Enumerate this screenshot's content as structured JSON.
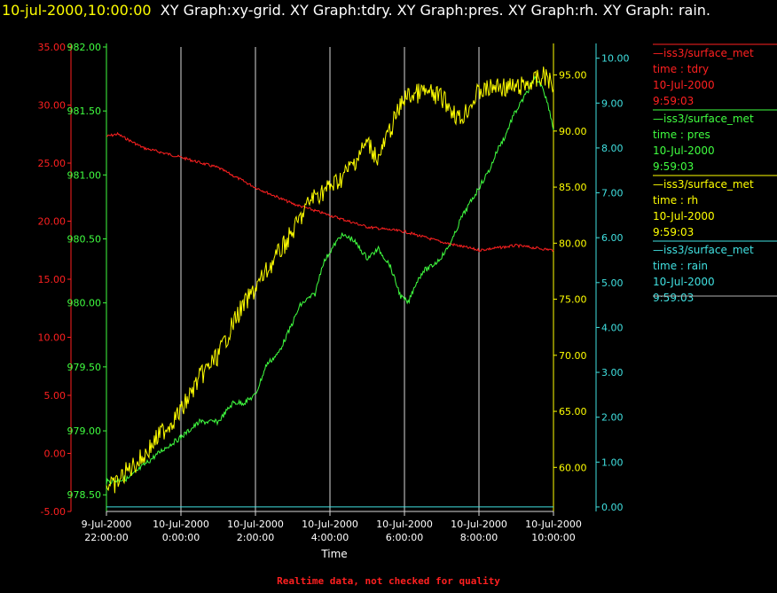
{
  "title": {
    "timestamp": "10-jul-2000,10:00:00",
    "text": "XY Graph:xy-grid.  XY Graph:tdry.  XY Graph:pres.  XY Graph:rh.  XY Graph: rain."
  },
  "footer": "Realtime data, not checked for quality",
  "chart_data": {
    "type": "line",
    "xlabel": "Time",
    "x_ticks": [
      [
        "9-Jul-2000",
        "22:00:00"
      ],
      [
        "10-Jul-2000",
        "0:00:00"
      ],
      [
        "10-Jul-2000",
        "2:00:00"
      ],
      [
        "10-Jul-2000",
        "4:00:00"
      ],
      [
        "10-Jul-2000",
        "6:00:00"
      ],
      [
        "10-Jul-2000",
        "8:00:00"
      ],
      [
        "10-Jul-2000",
        "10:00:00"
      ]
    ],
    "grid": "vertical lines at x ticks",
    "axes": [
      {
        "name": "tdry",
        "side": "left-outer",
        "color": "#ff2020",
        "ylim": [
          -5,
          35
        ],
        "ticks": [
          "-5.00",
          "0.00",
          "5.00",
          "10.00",
          "15.00",
          "20.00",
          "25.00",
          "30.00",
          "35.00"
        ]
      },
      {
        "name": "pres",
        "side": "left-inner",
        "color": "#40ff40",
        "ylim": [
          978.37,
          982
        ],
        "ticks": [
          "978.50",
          "979.00",
          "979.50",
          "980.00",
          "980.50",
          "981.00",
          "981.50",
          "982.00"
        ]
      },
      {
        "name": "rh",
        "side": "right-inner",
        "color": "#ffff00",
        "ylim": [
          56.07,
          97.5
        ],
        "ticks": [
          "60.00",
          "65.00",
          "70.00",
          "75.00",
          "80.00",
          "85.00",
          "90.00",
          "95.00"
        ]
      },
      {
        "name": "rain",
        "side": "right-outer",
        "color": "#40e0e0",
        "ylim": [
          -0.1,
          10.25
        ],
        "ticks": [
          "0.00",
          "1.00",
          "2.00",
          "3.00",
          "4.00",
          "5.00",
          "6.00",
          "7.00",
          "8.00",
          "9.00",
          "10.00"
        ]
      }
    ],
    "x_hours": [
      0,
      12
    ],
    "series": [
      {
        "name": "tdry",
        "color": "#ff2020",
        "x": [
          0,
          0.3,
          1,
          2,
          3,
          4,
          5,
          6,
          7,
          8,
          9,
          10,
          11,
          12
        ],
        "y": [
          27.3,
          27.5,
          26.3,
          25.5,
          24.6,
          22.9,
          21.5,
          20.5,
          19.5,
          19.1,
          18.2,
          17.5,
          17.9,
          17.5
        ]
      },
      {
        "name": "pres",
        "color": "#40ff40",
        "x": [
          0,
          0.6,
          1,
          1.5,
          2,
          2.5,
          3,
          3.4,
          3.7,
          4,
          4.3,
          4.6,
          4.9,
          5.2,
          5.4,
          5.6,
          5.8,
          6,
          6.3,
          6.6,
          7,
          7.3,
          7.6,
          7.9,
          8.1,
          8.3,
          8.5,
          8.7,
          8.9,
          9.1,
          9.3,
          9.5,
          9.7,
          9.9,
          10.1,
          10.3,
          10.5,
          10.7,
          10.9,
          11.1,
          11.3,
          11.5,
          11.7,
          11.9,
          12
        ],
        "y": [
          978.6,
          978.63,
          978.73,
          978.85,
          978.95,
          979.07,
          979.07,
          979.22,
          979.22,
          979.28,
          979.52,
          979.6,
          979.78,
          979.98,
          980.03,
          980.07,
          980.3,
          980.4,
          980.53,
          980.5,
          980.35,
          980.42,
          980.3,
          980.05,
          980,
          980.15,
          980.25,
          980.28,
          980.33,
          980.4,
          980.5,
          980.65,
          980.75,
          980.85,
          980.95,
          981.05,
          981.2,
          981.3,
          981.45,
          981.55,
          981.65,
          981.75,
          981.7,
          981.5,
          981.35
        ]
      },
      {
        "name": "rh",
        "color": "#ffff00",
        "x": [
          0,
          0.2,
          0.5,
          1,
          1.5,
          2,
          2.5,
          3,
          3.5,
          4,
          4.5,
          5,
          5.5,
          6,
          6.3,
          6.6,
          7,
          7.3,
          7.6,
          8,
          8.5,
          9,
          9.5,
          10,
          10.5,
          11,
          11.5,
          11.8,
          12
        ],
        "y": [
          58.5,
          58.3,
          59.5,
          61,
          63.2,
          65,
          68,
          70,
          73.5,
          76,
          78.5,
          81,
          84,
          85,
          85.8,
          87,
          89,
          87.5,
          90,
          93,
          93.5,
          93,
          91,
          93.5,
          94,
          93.8,
          94.5,
          95,
          93.7
        ]
      },
      {
        "name": "rain",
        "color": "#40e0e0",
        "x": [
          0,
          12
        ],
        "y": [
          0,
          0
        ]
      }
    ],
    "legend_placement": "right",
    "legend": [
      {
        "source": "—iss3/surface_met",
        "variable": "time : tdry",
        "date": "10-Jul-2000",
        "time": "9:59:03",
        "color": "#ff2020"
      },
      {
        "source": "—iss3/surface_met",
        "variable": "time : pres",
        "date": "10-Jul-2000",
        "time": "9:59:03",
        "color": "#40ff40"
      },
      {
        "source": "—iss3/surface_met",
        "variable": "time : rh",
        "date": "10-Jul-2000",
        "time": "9:59:03",
        "color": "#ffff00"
      },
      {
        "source": "—iss3/surface_met",
        "variable": "time : rain",
        "date": "10-Jul-2000",
        "time": "9:59:03",
        "color": "#40e0e0"
      }
    ]
  }
}
